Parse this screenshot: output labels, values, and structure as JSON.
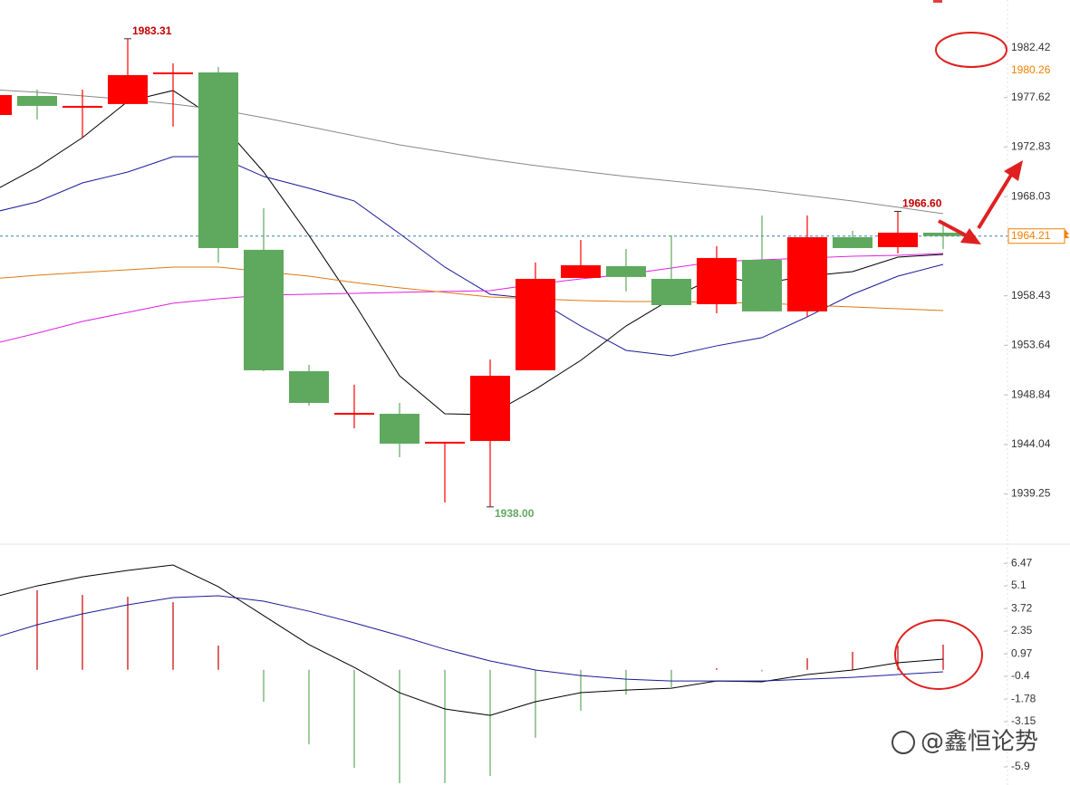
{
  "chart_data": [
    {
      "type": "candlestick",
      "categories": [
        null,
        null,
        null,
        null,
        null,
        null,
        null,
        null,
        null,
        null,
        null,
        null,
        null,
        null,
        null,
        null,
        null,
        null,
        null,
        null,
        null,
        null
      ],
      "open": [
        1975.93,
        1977.77,
        1976.81,
        1976.99,
        1980.05,
        1980.05,
        1962.88,
        1951.13,
        1947.1,
        1947.01,
        1944.3,
        1944.38,
        1951.22,
        1960.16,
        1961.3,
        1960.07,
        1957.62,
        1961.91,
        1956.92,
        1964.1,
        1963.14,
        1964.54
      ],
      "high": [
        1977.86,
        1978.39,
        1978.39,
        1983.31,
        1980.93,
        1980.58,
        1966.9,
        1951.75,
        1949.82,
        1948.06,
        1944.3,
        1952.27,
        1961.65,
        1963.84,
        1962.96,
        1964.28,
        1963.23,
        1966.2,
        1966.2,
        1964.72,
        1966.6,
        1965.59
      ],
      "low": [
        1975.93,
        1975.5,
        1973.74,
        1976.99,
        1974.8,
        1961.65,
        1951.13,
        1947.8,
        1945.61,
        1942.81,
        1938.42,
        1938.0,
        1951.22,
        1960.16,
        1958.85,
        1957.53,
        1956.74,
        1956.92,
        1956.39,
        1963.05,
        1962.53,
        1962.96
      ],
      "close": [
        1977.86,
        1976.81,
        1976.81,
        1979.79,
        1980.05,
        1963.05,
        1951.22,
        1948.06,
        1947.1,
        1944.12,
        1944.3,
        1950.69,
        1960.07,
        1961.39,
        1960.25,
        1957.53,
        1962.09,
        1956.92,
        1964.1,
        1963.05,
        1964.54,
        1964.21
      ],
      "up_color": "#ff0000",
      "down_color": "#5ea95e",
      "series": [
        {
          "color": "#000000",
          "values": [
            1968.49,
            1970.85,
            1973.74,
            1977.25,
            1978.3,
            1975.41,
            1970.41,
            1964.28,
            1957.71,
            1950.69,
            1947.01,
            1946.93,
            1949.38,
            1952.18,
            1955.51,
            1958.14,
            1960.33,
            1959.63,
            1960.33,
            1960.77,
            1962.17,
            1962.44
          ]
        },
        {
          "color": "#1a1a99",
          "values": [
            1966.47,
            1967.52,
            1969.36,
            1970.41,
            1971.9,
            1971.9,
            1969.98,
            1968.84,
            1967.61,
            1964.45,
            1961.21,
            1958.58,
            1958.14,
            1955.51,
            1953.15,
            1952.62,
            1953.59,
            1954.38,
            1956.39,
            1958.58,
            1960.33,
            1961.47
          ]
        },
        {
          "color": "#888888",
          "values": [
            1978.39,
            1978.13,
            1977.78,
            1977.42,
            1976.99,
            1976.46,
            1975.67,
            1974.8,
            1973.92,
            1973.04,
            1972.34,
            1971.64,
            1971.03,
            1970.5,
            1969.98,
            1969.54,
            1969.1,
            1968.66,
            1968.13,
            1967.61,
            1967.0,
            1966.38
          ]
        },
        {
          "color": "#e020e0",
          "values": [
            1953.76,
            1954.81,
            1955.95,
            1956.83,
            1957.71,
            1958.14,
            1958.49,
            1958.58,
            1958.67,
            1958.76,
            1958.85,
            1958.93,
            1959.55,
            1960.07,
            1960.51,
            1961.12,
            1961.74,
            1961.91,
            1962.09,
            1962.26,
            1962.35,
            1962.53
          ]
        },
        {
          "color": "#e07810",
          "values": [
            1960.07,
            1960.42,
            1960.69,
            1960.95,
            1961.21,
            1961.21,
            1960.77,
            1960.33,
            1959.72,
            1959.2,
            1958.76,
            1958.32,
            1958.14,
            1957.97,
            1957.88,
            1957.88,
            1957.79,
            1957.71,
            1957.53,
            1957.35,
            1957.18,
            1957.0
          ]
        }
      ],
      "ylim": [
        1934.48,
        1987.06
      ],
      "yticks": [
        1982.42,
        1977.62,
        1972.83,
        1968.03,
        1958.43,
        1953.64,
        1948.84,
        1944.04,
        1939.25
      ],
      "annotations": [
        {
          "text": "1983.31",
          "color": "#c00000"
        },
        {
          "text": "1938.00",
          "color": "#5ea95e"
        },
        {
          "text": "1966.60",
          "color": "#c00000"
        }
      ],
      "price_tags": [
        {
          "value": 1980.26,
          "color": "#f08000",
          "boxed": false
        },
        {
          "value": 1964.21,
          "color": "#f08000",
          "boxed": true
        }
      ],
      "current_line_color": "#3a7fc0"
    },
    {
      "type": "macd",
      "histogram": [
        null,
        4.83,
        4.55,
        4.44,
        4.11,
        1.47,
        -1.94,
        -4.53,
        -5.96,
        -6.89,
        -6.89,
        -6.45,
        -4.13,
        -2.49,
        -1.5,
        -1.06,
        0.1,
        -0.1,
        0.7,
        1.09,
        1.47,
        1.53
      ],
      "up_color": "#cc0000",
      "down_color": "#5ea95e",
      "series": [
        {
          "color": "#000000",
          "values": [
            4.39,
            5.1,
            5.65,
            6.04,
            6.37,
            5.05,
            3.29,
            1.53,
            0.15,
            -1.39,
            -2.38,
            -2.77,
            -1.94,
            -1.39,
            -1.23,
            -1.12,
            -0.68,
            -0.73,
            -0.29,
            -0.01,
            0.43,
            0.65
          ]
        },
        {
          "color": "#1a1a99",
          "values": [
            1.91,
            2.74,
            3.4,
            3.95,
            4.39,
            4.5,
            4.17,
            3.56,
            2.85,
            2.08,
            1.25,
            0.54,
            -0.01,
            -0.35,
            -0.57,
            -0.68,
            -0.68,
            -0.68,
            -0.57,
            -0.46,
            -0.29,
            -0.12
          ]
        }
      ],
      "ylim": [
        -7.0,
        7.36
      ],
      "yticks": [
        6.47,
        5.1,
        3.72,
        2.35,
        0.97,
        -0.4,
        -1.78,
        -3.15,
        -5.9
      ]
    }
  ],
  "watermark": "@鑫恒论势"
}
